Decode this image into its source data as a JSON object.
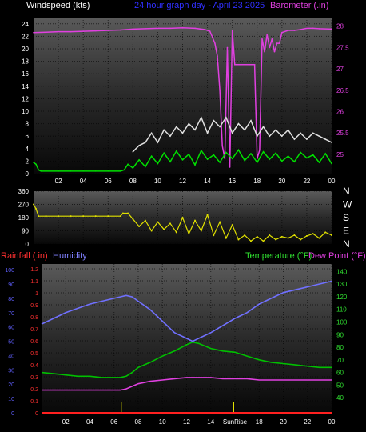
{
  "chart_data": [
    {
      "type": "line",
      "title": "24 hour graph day - April 23 2025",
      "left_label": "Windspeed (kts)",
      "right_label": "Barometer (.in)",
      "x_ticks": [
        "02",
        "04",
        "06",
        "08",
        "10",
        "12",
        "14",
        "16",
        "18",
        "20",
        "22",
        "00"
      ],
      "left_ticks": [
        "0",
        "2",
        "4",
        "6",
        "8",
        "10",
        "12",
        "14",
        "16",
        "18",
        "20",
        "22",
        "24"
      ],
      "left_ylim": [
        0,
        25
      ],
      "right_ticks": [
        "25",
        "25.5",
        "26",
        "26.5",
        "27",
        "27.5",
        "28"
      ],
      "right_ylim": [
        24.55,
        28.2
      ],
      "series": [
        {
          "axis": "right",
          "color": "#e040e0",
          "x": [
            0,
            1,
            2,
            3,
            4,
            5,
            6,
            7,
            8,
            9,
            10,
            11,
            12,
            13,
            13.8,
            14.2,
            14.6,
            14.8,
            15,
            15.2,
            15.4,
            15.6,
            15.8,
            16,
            16.2,
            16.6,
            17,
            17.4,
            17.8,
            18,
            18.2,
            18.4,
            18.6,
            18.8,
            19,
            19.2,
            19.4,
            19.6,
            19.8,
            20,
            20.5,
            21,
            21.5,
            22,
            22.5,
            23,
            24
          ],
          "y": [
            27.85,
            27.86,
            27.87,
            27.87,
            27.88,
            27.89,
            27.9,
            27.91,
            27.93,
            27.94,
            27.95,
            27.95,
            27.96,
            27.95,
            27.92,
            27.88,
            27.6,
            27.3,
            26.5,
            25.2,
            24.9,
            27.5,
            24.7,
            27.9,
            27.1,
            27.1,
            27.1,
            27.1,
            27.1,
            24.9,
            25.1,
            27.7,
            27.4,
            27.8,
            27.5,
            27.7,
            27.4,
            27.6,
            27.6,
            27.85,
            27.9,
            27.9,
            27.92,
            27.95,
            27.95,
            27.94,
            27.93
          ]
        },
        {
          "axis": "left",
          "color": "#00e000",
          "x": [
            0,
            0.2,
            0.4,
            0.6,
            1,
            2,
            3,
            4,
            5,
            6,
            7,
            7.3,
            7.6,
            8,
            8.5,
            9,
            9.5,
            10,
            10.5,
            11,
            11.5,
            12,
            12.5,
            13,
            13.5,
            14,
            14.5,
            15,
            15.5,
            16,
            16.5,
            17,
            17.5,
            18,
            18.5,
            19,
            19.5,
            20,
            20.5,
            21,
            21.5,
            22,
            22.5,
            23,
            23.5,
            24
          ],
          "y": [
            1.8,
            1.5,
            0.6,
            0.4,
            0.4,
            0.4,
            0.4,
            0.4,
            0.4,
            0.4,
            0.4,
            0.6,
            1.5,
            0.9,
            2.2,
            1.1,
            2.8,
            1.6,
            3.3,
            1.9,
            3.6,
            2.2,
            3.1,
            1.4,
            3.7,
            2.3,
            3.0,
            1.8,
            3.4,
            2.4,
            3.8,
            2.1,
            3.2,
            1.8,
            3.5,
            2.3,
            3.3,
            2.0,
            2.8,
            1.9,
            3.4,
            2.5,
            3.0,
            1.8,
            3.2,
            1.6
          ]
        },
        {
          "axis": "left",
          "color": "#e0e0e0",
          "x": [
            8,
            8.5,
            9,
            9.5,
            10,
            10.5,
            11,
            11.5,
            12,
            12.5,
            13,
            13.5,
            14,
            14.5,
            15,
            15.5,
            16,
            16.5,
            17,
            17.5,
            18,
            18.5,
            19,
            19.5,
            20,
            20.5,
            21,
            21.5,
            22,
            22.5,
            23,
            23.5,
            24
          ],
          "y": [
            3.5,
            4.5,
            5.0,
            6.5,
            5.0,
            7.0,
            6.0,
            7.5,
            6.5,
            8.0,
            7.0,
            9.0,
            6.5,
            8.5,
            7.5,
            9.0,
            6.5,
            8.0,
            7.0,
            8.5,
            6.0,
            7.5,
            6.0,
            7.0,
            6.0,
            7.0,
            5.5,
            6.5,
            5.5,
            6.5,
            6.0,
            5.5,
            5.0
          ]
        }
      ]
    },
    {
      "type": "scatter",
      "left_ticks": [
        "0",
        "90",
        "180",
        "270",
        "360"
      ],
      "ylim": [
        0,
        360
      ],
      "right_ticks": [
        "N",
        "W",
        "S",
        "E",
        "N"
      ],
      "series": [
        {
          "color": "#e0e000",
          "x": [
            0,
            0.2,
            0.4,
            1,
            2,
            3,
            4,
            5,
            6,
            7,
            7.2,
            7.6,
            8,
            8.5,
            9,
            9.5,
            10,
            10.5,
            11,
            11.5,
            12,
            12.5,
            13,
            13.5,
            14,
            14.5,
            15,
            15.5,
            16,
            16.5,
            17,
            17.5,
            18,
            18.5,
            19,
            19.5,
            20,
            20.5,
            21,
            21.5,
            22,
            22.5,
            23,
            23.5,
            24
          ],
          "y": [
            270,
            240,
            190,
            190,
            190,
            190,
            190,
            190,
            190,
            190,
            210,
            210,
            170,
            120,
            160,
            90,
            150,
            100,
            140,
            80,
            180,
            70,
            160,
            90,
            200,
            60,
            150,
            40,
            130,
            30,
            60,
            20,
            50,
            20,
            60,
            30,
            50,
            40,
            60,
            30,
            55,
            70,
            40,
            80,
            60
          ]
        }
      ]
    },
    {
      "type": "line",
      "left_label_1": "Rainfall (.in)",
      "left_label_2": "Humidity",
      "right_label_1": "Temperature (°F)",
      "right_label_2": "Dew Point (°F)",
      "x_ticks": [
        "02",
        "04",
        "06",
        "08",
        "10",
        "12",
        "14",
        "SunRise",
        "18",
        "20",
        "22",
        "00"
      ],
      "rain_ticks": [
        "0",
        "0.1",
        "0.2",
        "0.3",
        "0.4",
        "0.5",
        "0.6",
        "0.7",
        "0.8",
        "0.9",
        "1",
        "1.1",
        "1.2"
      ],
      "humidity_ticks": [
        "0",
        "10",
        "20",
        "30",
        "40",
        "50",
        "60",
        "70",
        "80",
        "90",
        "100"
      ],
      "temp_ticks": [
        "40",
        "50",
        "60",
        "70",
        "80",
        "90",
        "100",
        "110",
        "120",
        "130",
        "140"
      ],
      "temp_ylim": [
        28,
        146
      ],
      "humidity_ylim": [
        0,
        104
      ],
      "series": [
        {
          "axis": "humidity",
          "color": "#7070ff",
          "x": [
            0,
            1,
            2,
            3,
            4,
            5,
            6,
            6.5,
            7,
            7.5,
            8,
            9,
            10,
            11,
            12,
            12.5,
            13,
            14,
            15,
            16,
            17,
            18,
            19,
            20,
            21,
            22,
            23,
            24
          ],
          "y": [
            62,
            66,
            70,
            73,
            76,
            78,
            80,
            81,
            82,
            81,
            78,
            72,
            64,
            56,
            52,
            50,
            52,
            56,
            61,
            66,
            70,
            76,
            80,
            84,
            86,
            88,
            90,
            92
          ]
        },
        {
          "axis": "temp",
          "color": "#00c000",
          "x": [
            0,
            1,
            2,
            3,
            4,
            5,
            6,
            6.5,
            7,
            7.5,
            8,
            9,
            10,
            11,
            12,
            12.5,
            13,
            14,
            15,
            16,
            17,
            18,
            19,
            20,
            21,
            22,
            23,
            24
          ],
          "y": [
            60,
            59,
            58,
            57,
            57,
            56,
            56,
            56,
            57,
            60,
            64,
            68,
            73,
            77,
            82,
            84,
            83,
            79,
            77,
            76,
            73,
            70,
            68,
            67,
            66,
            65,
            64,
            64
          ]
        },
        {
          "axis": "temp",
          "color": "#e040e0",
          "x": [
            0,
            1,
            2,
            3,
            4,
            5,
            6,
            6.5,
            7,
            7.5,
            8,
            9,
            10,
            11,
            12,
            13,
            14,
            15,
            16,
            17,
            18,
            19,
            20,
            21,
            22,
            23,
            24
          ],
          "y": [
            46,
            46,
            46,
            46,
            46,
            46,
            46,
            46,
            47,
            49,
            51,
            53,
            54,
            55,
            56,
            56,
            56,
            55,
            55,
            55,
            54,
            54,
            54,
            54,
            54,
            54,
            54
          ]
        },
        {
          "axis": "rain",
          "color": "#ff2020",
          "x": [
            0,
            24
          ],
          "y": [
            0,
            0
          ]
        }
      ],
      "rain_ticks_marks": [
        4.0,
        6.6,
        15.9
      ]
    }
  ]
}
